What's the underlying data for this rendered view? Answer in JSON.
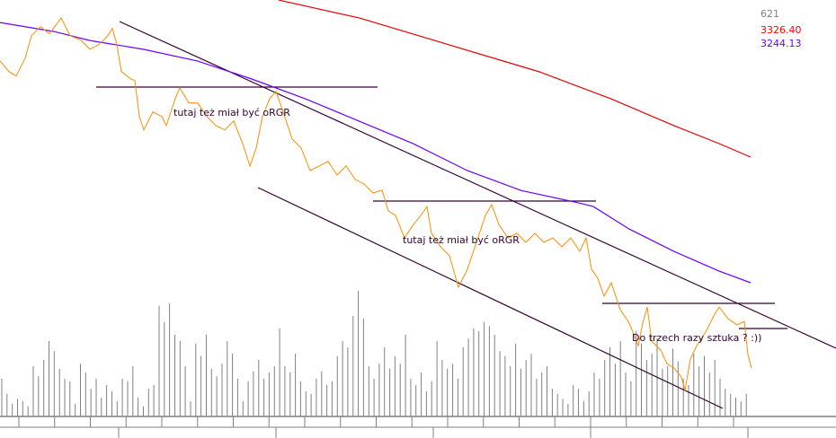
{
  "chart_data": {
    "type": "line",
    "title": "",
    "grid": false,
    "readouts": [
      {
        "text": "621",
        "color": "#808080"
      },
      {
        "text": "3326.40",
        "color": "#ff0000"
      },
      {
        "text": "3244.13",
        "color": "#6a00ff"
      }
    ],
    "annotations": [
      {
        "text": "tutaj też miał być oRGR"
      },
      {
        "text": "tutaj też miał być oRGR"
      },
      {
        "text": "Do trzech razy sztuka ? :))"
      }
    ],
    "colors": {
      "price": "#ff8c00",
      "ma_long": "#e00000",
      "ma_short": "#6a00ff",
      "trendlines": "#330033",
      "volume": "#808080",
      "axis": "#808080"
    },
    "price_series": [
      3389.4,
      3382.4,
      3379.4,
      3391.2,
      3405.9,
      3411.8,
      3407.1,
      3417.4,
      3405.9,
      3402.9,
      3397.0,
      3400.0,
      3405.9,
      3410.6,
      3400.0,
      3382.4,
      3377.7,
      3376.5,
      3353.0,
      3344.2,
      3355.9,
      3353.0,
      3347.1,
      3364.7,
      3371.8,
      3361.8,
      3361.8,
      3353.0,
      3347.1,
      3344.2,
      3350.0,
      3335.3,
      3320.5,
      3332.3,
      3352.9,
      3364.7,
      3369.4,
      3355.9,
      3338.2,
      3332.3,
      3317.6,
      3320.6,
      3323.5,
      3314.7,
      3320.6,
      3311.8,
      3308.8,
      3302.9,
      3304.7,
      3291.2,
      3288.2,
      3273.5,
      3282.3,
      3288.2,
      3294.1,
      3276.5,
      3267.7,
      3261.8,
      3241.2,
      3253.0,
      3270.6,
      3288.2,
      3295.3,
      3282.3,
      3273.5,
      3276.5,
      3270.6,
      3276.5,
      3270.6,
      3273.5,
      3267.7,
      3273.5,
      3264.7,
      3273.5,
      3253.0,
      3247.1,
      3235.3,
      3244.1,
      3226.5,
      3217.7,
      3202.9,
      3217.7,
      3228.2,
      3205.9,
      3200.0,
      3191.2,
      3188.2,
      3182.4,
      3173.6,
      3194.1,
      3202.9,
      3211.8,
      3223.5,
      3228.2,
      3220.6,
      3216.5,
      3218.8,
      3197.0,
      3188.2
    ],
    "ma_long_series": [
      3429.2,
      3417.4,
      3399.8,
      3382.2,
      3364.5,
      3346.9,
      3335.2,
      3326.4
    ],
    "ma_short_series": [
      3414.5,
      3408.6,
      3402.7,
      3396.9,
      3389.2,
      3377.5,
      3364.5,
      3349.8,
      3335.1,
      3317.5,
      3304.5,
      3296.9,
      3294.0,
      3279.3,
      3264.6,
      3251.7,
      3244.13
    ],
    "volume": [
      30,
      18,
      10,
      14,
      12,
      8,
      40,
      32,
      45,
      60,
      52,
      38,
      30,
      28,
      10,
      42,
      35,
      22,
      30,
      15,
      25,
      20,
      12,
      30,
      28,
      40,
      15,
      8,
      22,
      25,
      88,
      75,
      90,
      65,
      60,
      40,
      12,
      58,
      48,
      65,
      38,
      32,
      42,
      60,
      50,
      30,
      12,
      28,
      36,
      45,
      30,
      35,
      40,
      70,
      40,
      35,
      50,
      28,
      20,
      18,
      30,
      36,
      25,
      28,
      48,
      60,
      55,
      80,
      100,
      78,
      40,
      30,
      42,
      55,
      38,
      48,
      42,
      65,
      30,
      25,
      35,
      20,
      28,
      60,
      45,
      38,
      42,
      30,
      55,
      62,
      70,
      68,
      75,
      72,
      65,
      52,
      48,
      40,
      58,
      38,
      45,
      50,
      30,
      35,
      40,
      22,
      18,
      14,
      10,
      25,
      22,
      12,
      20,
      35,
      30,
      45,
      55,
      42,
      60,
      35,
      28,
      68,
      58,
      45,
      50,
      62,
      38,
      40,
      54,
      44,
      30,
      25,
      50,
      40,
      48,
      35,
      45,
      30,
      22,
      18,
      15,
      12,
      18
    ],
    "x_ticks_major": 5,
    "x_ticks_minor": 21
  }
}
